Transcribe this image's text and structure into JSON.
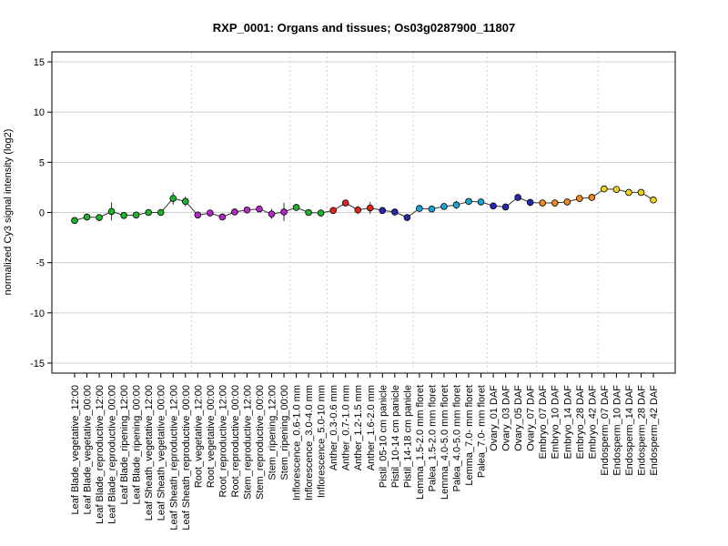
{
  "chart_data": {
    "type": "line",
    "title": "RXP_0001: Organs and tissues; Os03g0287900_11807",
    "xlabel": "",
    "ylabel": "normalized Cy3 signal intensity (log2)",
    "ylim": [
      -16,
      16
    ],
    "yticks": [
      -15,
      -10,
      -5,
      0,
      5,
      10,
      15
    ],
    "grid": true,
    "categories": [
      "Leaf Blade_vegetative_12:00",
      "Leaf Blade_vegetative_00:00",
      "Leaf Blade_reproductive_12:00",
      "Leaf Blade_reproductive_00:00",
      "Leaf Blade_ripening_12:00",
      "Leaf Blade_ripening_00:00",
      "Leaf Sheath_vegetative_12:00",
      "Leaf Sheath_vegetative_00:00",
      "Leaf Sheath_reproductive_12:00",
      "Leaf Sheath_reproductive_00:00",
      "Root_vegetative_12:00",
      "Root_vegetative_00:00",
      "Root_reproductive_12:00",
      "Root_reproductive_00:00",
      "Stem_reproductive_12:00",
      "Stem_reproductive_00:00",
      "Stem_ripening_12:00",
      "Stem_ripening_00:00",
      "Inflorescence_0.6-1.0 mm",
      "Inflorescence_3.0-4.0 mm",
      "Inflorescence_5.0-10 mm",
      "Anther_0.3-0.6 mm",
      "Anther_0.7-1.0 mm",
      "Anther_1.2-1.5 mm",
      "Anther_1.6-2.0 mm",
      "Pistil_05-10 cm panicle",
      "Pistil_10-14 cm panicle",
      "Pistil_14-18 cm panicle",
      "Lemma_1.5-2.0 mm floret",
      "Palea_1.5-2.0 mm floret",
      "Lemma_4.0-5.0 mm floret",
      "Palea_4.0-5.0 mm floret",
      "Lemma_7.0- mm floret",
      "Palea_7.0- mm floret",
      "Ovary_01 DAF",
      "Ovary_03 DAF",
      "Ovary_05 DAF",
      "Ovary_07 DAF",
      "Embryo_07 DAF",
      "Embryo_10 DAF",
      "Embryo_14 DAF",
      "Embryo_28 DAF",
      "Embryo_42 DAF",
      "Endosperm_07 DAF",
      "Endosperm_10 DAF",
      "Endosperm_14 DAF",
      "Endosperm_28 DAF",
      "Endosperm_42 DAF"
    ],
    "values": [
      -0.8,
      -0.45,
      -0.5,
      0.1,
      -0.3,
      -0.25,
      0.0,
      0.0,
      1.4,
      1.1,
      -0.25,
      -0.05,
      -0.45,
      0.05,
      0.25,
      0.35,
      -0.15,
      0.05,
      0.5,
      0.0,
      -0.05,
      0.2,
      0.95,
      0.25,
      0.45,
      0.2,
      0.05,
      -0.5,
      0.4,
      0.35,
      0.6,
      0.75,
      1.1,
      1.05,
      0.65,
      0.55,
      1.5,
      1.0,
      0.95,
      0.95,
      1.05,
      1.4,
      1.5,
      2.35,
      2.3,
      2.0,
      2.0,
      1.25
    ],
    "errors": [
      0.15,
      0.1,
      0.1,
      0.9,
      0.15,
      0.15,
      0.3,
      0.3,
      0.6,
      0.5,
      0.1,
      0.1,
      0.1,
      0.1,
      0.1,
      0.1,
      0.5,
      0.9,
      0.1,
      0.1,
      0.1,
      0.1,
      0.1,
      0.4,
      0.6,
      0.15,
      0.15,
      0.2,
      0.2,
      0.1,
      0.3,
      0.4,
      0.1,
      0.1,
      0.1,
      0.15,
      0.2,
      0.35,
      0.1,
      0.1,
      0.3,
      0.1,
      0.1,
      0.1,
      0.1,
      0.1,
      0.1,
      0.1
    ],
    "point_colors": [
      "#1fb32d",
      "#1fb32d",
      "#1fb32d",
      "#1fb32d",
      "#1fb32d",
      "#1fb32d",
      "#1fb32d",
      "#1fb32d",
      "#1fb32d",
      "#1fb32d",
      "#b626c8",
      "#b626c8",
      "#b626c8",
      "#b626c8",
      "#b626c8",
      "#b626c8",
      "#b626c8",
      "#b626c8",
      "#1fb32d",
      "#1fb32d",
      "#1fb32d",
      "#e1261c",
      "#e1261c",
      "#e1261c",
      "#e1261c",
      "#2626b3",
      "#2626b3",
      "#2626b3",
      "#1aa6d4",
      "#1aa6d4",
      "#1aa6d4",
      "#1aa6d4",
      "#1aa6d4",
      "#1aa6d4",
      "#2626b3",
      "#2626b3",
      "#2626b3",
      "#2626b3",
      "#f08a1e",
      "#f08a1e",
      "#f08a1e",
      "#f08a1e",
      "#f08a1e",
      "#f0d21e",
      "#f0d21e",
      "#f0d21e",
      "#f0d21e",
      "#f0d21e"
    ],
    "group_separators_after": [
      9,
      17,
      20,
      24,
      27,
      33,
      37,
      42
    ],
    "line_color": "#333333",
    "grid_color": "#d0d0d0"
  }
}
